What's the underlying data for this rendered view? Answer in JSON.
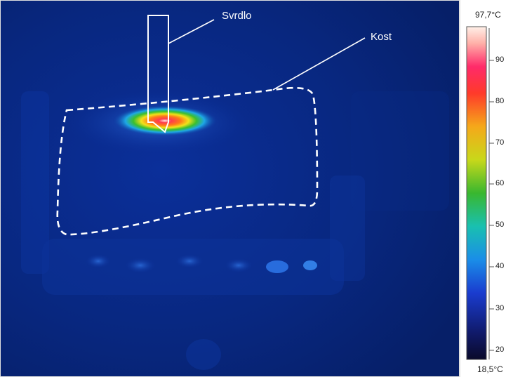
{
  "labels": {
    "drill": "Svrdlo",
    "bone": "Kost"
  },
  "scale": {
    "max": "97,7°C",
    "min": "18,5°C",
    "ticks": [
      "90",
      "80",
      "70",
      "60",
      "50",
      "40",
      "30",
      "20"
    ]
  },
  "colors": {
    "background": "#0a2a8a",
    "hotspot": "#ff2a3a",
    "annotation": "#ffffff",
    "panel": "#cfcfcf"
  }
}
